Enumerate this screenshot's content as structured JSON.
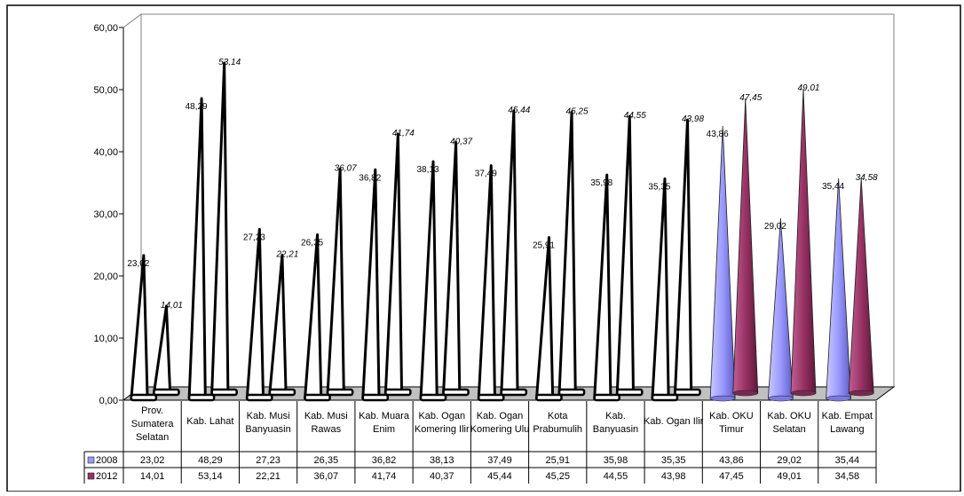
{
  "chart_data": {
    "type": "bar",
    "categories": [
      [
        "Prov.",
        "Sumatera",
        "Selatan"
      ],
      [
        "Kab. Lahat"
      ],
      [
        "Kab. Musi",
        "Banyuasin"
      ],
      [
        "Kab. Musi",
        "Rawas"
      ],
      [
        "Kab. Muara",
        "Enim"
      ],
      [
        "Kab. Ogan",
        "Komering Ilir"
      ],
      [
        "Kab. Ogan",
        "Komering Ulu"
      ],
      [
        "Kota",
        "Prabumulih"
      ],
      [
        "Kab.",
        "Banyuasin"
      ],
      [
        "Kab. Ogan Ilir"
      ],
      [
        "Kab. OKU",
        "Timur"
      ],
      [
        "Kab. OKU",
        "Selatan"
      ],
      [
        "Kab. Empat",
        "Lawang"
      ]
    ],
    "series": [
      {
        "name": "2008",
        "color": "#9999ff",
        "values": [
          23.02,
          48.29,
          27.23,
          26.35,
          36.82,
          38.13,
          37.49,
          25.91,
          35.98,
          35.35,
          43.86,
          29.02,
          35.44
        ],
        "labels": [
          "23,02",
          "48,29",
          "27,23",
          "26,35",
          "36,82",
          "38,13",
          "37,49",
          "25,91",
          "35,98",
          "35,35",
          "43,86",
          "29,02",
          "35,44"
        ]
      },
      {
        "name": "2012",
        "color": "#993366",
        "values": [
          14.01,
          53.14,
          22.21,
          36.07,
          41.74,
          40.37,
          45.44,
          45.25,
          44.55,
          43.98,
          47.45,
          49.01,
          34.58
        ],
        "labels": [
          "14,01",
          "53,14",
          "22,21",
          "36,07",
          "41,74",
          "40,37",
          "45,44",
          "45,25",
          "44,55",
          "43,98",
          "47,45",
          "49,01",
          "34,58"
        ]
      }
    ],
    "yticks": [
      "0,00",
      "10,00",
      "20,00",
      "30,00",
      "40,00",
      "50,00",
      "60,00"
    ],
    "ylim": [
      0,
      60
    ],
    "outlined_groups": 10,
    "grid": false,
    "legend": "data-table"
  }
}
